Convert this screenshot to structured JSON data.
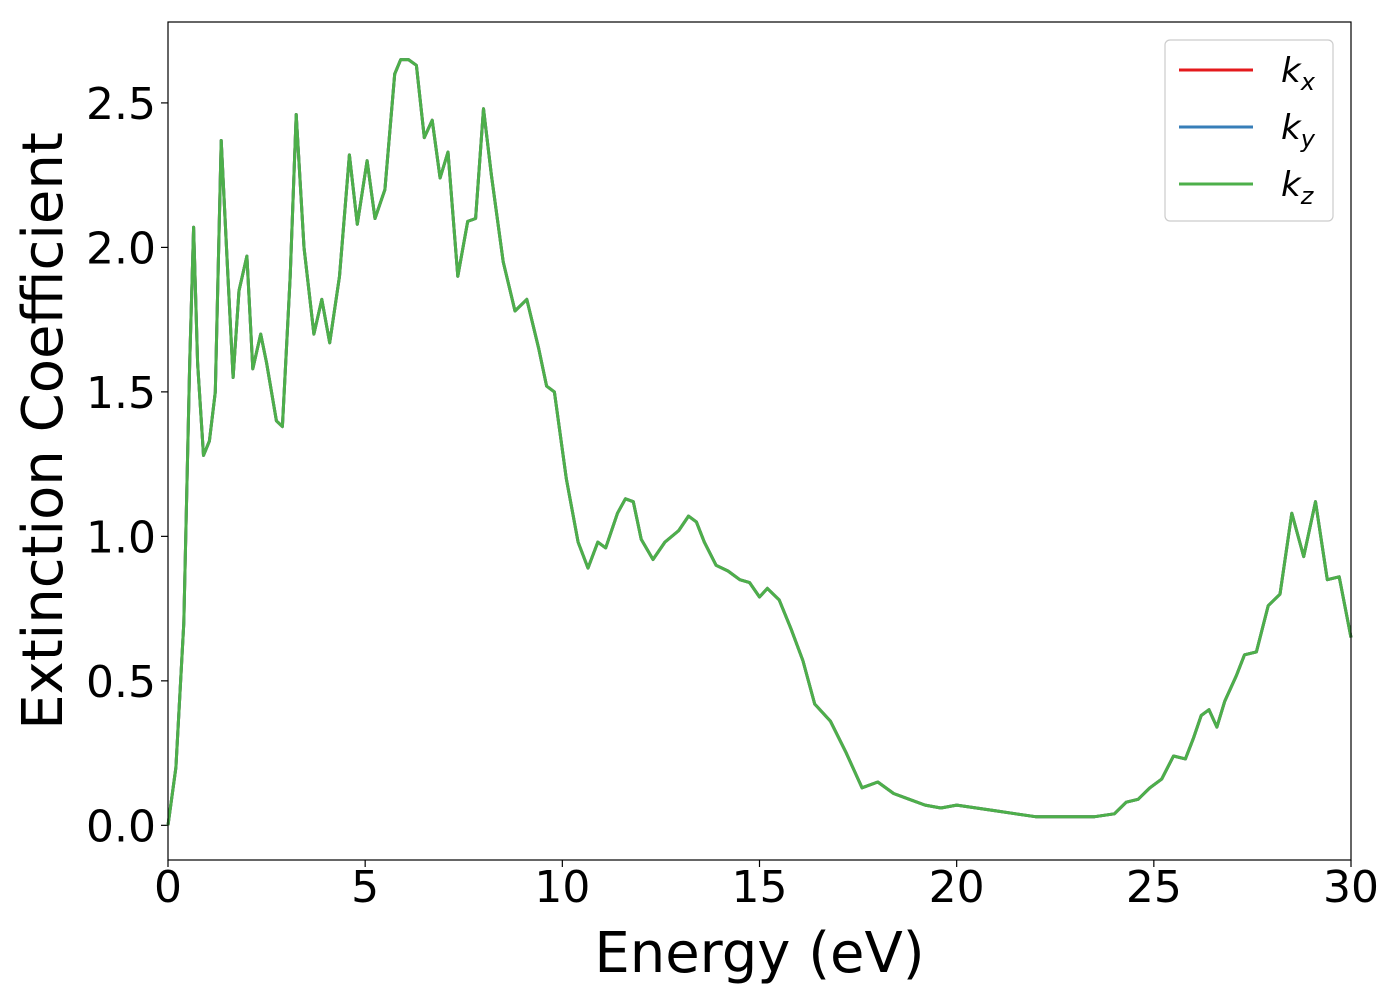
{
  "chart_data": {
    "type": "line",
    "title": "",
    "xlabel": "Energy (eV)",
    "ylabel": "Extinction Coefficient",
    "xlim": [
      0,
      30
    ],
    "ylim": [
      -0.12,
      2.78
    ],
    "xticks": [
      0,
      5,
      10,
      15,
      20,
      25,
      30
    ],
    "xtick_labels": [
      "0",
      "5",
      "10",
      "15",
      "20",
      "25",
      "30"
    ],
    "yticks": [
      0.0,
      0.5,
      1.0,
      1.5,
      2.0,
      2.5
    ],
    "ytick_labels": [
      "0.0",
      "0.5",
      "1.0",
      "1.5",
      "2.0",
      "2.5"
    ],
    "grid": false,
    "legend_position": "top-right",
    "x": [
      0.0,
      0.2,
      0.4,
      0.55,
      0.65,
      0.75,
      0.9,
      1.05,
      1.2,
      1.35,
      1.5,
      1.65,
      1.8,
      2.0,
      2.15,
      2.35,
      2.5,
      2.75,
      2.9,
      3.1,
      3.25,
      3.45,
      3.7,
      3.9,
      4.1,
      4.35,
      4.6,
      4.8,
      5.05,
      5.25,
      5.5,
      5.75,
      5.9,
      6.1,
      6.3,
      6.5,
      6.7,
      6.9,
      7.1,
      7.35,
      7.6,
      7.8,
      8.0,
      8.2,
      8.5,
      8.8,
      9.1,
      9.4,
      9.6,
      9.8,
      10.1,
      10.4,
      10.65,
      10.9,
      11.1,
      11.4,
      11.6,
      11.8,
      12.0,
      12.3,
      12.6,
      12.95,
      13.2,
      13.4,
      13.6,
      13.9,
      14.2,
      14.5,
      14.75,
      15.0,
      15.2,
      15.5,
      15.8,
      16.1,
      16.4,
      16.8,
      17.2,
      17.6,
      18.0,
      18.4,
      18.8,
      19.2,
      19.6,
      20.0,
      20.5,
      21.0,
      21.5,
      22.0,
      22.5,
      23.0,
      23.5,
      24.0,
      24.3,
      24.6,
      24.9,
      25.2,
      25.5,
      25.8,
      26.0,
      26.2,
      26.4,
      26.6,
      26.8,
      27.1,
      27.3,
      27.6,
      27.9,
      28.2,
      28.5,
      28.8,
      29.1,
      29.4,
      29.7,
      30.0
    ],
    "series": [
      {
        "name": "k_x",
        "color": "#e41a1c",
        "y": [
          0.0,
          0.2,
          0.7,
          1.6,
          2.07,
          1.6,
          1.28,
          1.33,
          1.5,
          2.37,
          1.95,
          1.55,
          1.85,
          1.97,
          1.58,
          1.7,
          1.6,
          1.4,
          1.38,
          1.9,
          2.46,
          2.0,
          1.7,
          1.82,
          1.67,
          1.9,
          2.32,
          2.08,
          2.3,
          2.1,
          2.2,
          2.6,
          2.65,
          2.65,
          2.63,
          2.38,
          2.44,
          2.24,
          2.33,
          1.9,
          2.09,
          2.1,
          2.48,
          2.25,
          1.95,
          1.78,
          1.82,
          1.65,
          1.52,
          1.5,
          1.2,
          0.98,
          0.89,
          0.98,
          0.96,
          1.08,
          1.13,
          1.12,
          0.99,
          0.92,
          0.98,
          1.02,
          1.07,
          1.05,
          0.98,
          0.9,
          0.88,
          0.85,
          0.84,
          0.79,
          0.82,
          0.78,
          0.68,
          0.57,
          0.42,
          0.36,
          0.25,
          0.13,
          0.15,
          0.11,
          0.09,
          0.07,
          0.06,
          0.07,
          0.06,
          0.05,
          0.04,
          0.03,
          0.03,
          0.03,
          0.03,
          0.04,
          0.08,
          0.09,
          0.13,
          0.16,
          0.24,
          0.23,
          0.3,
          0.38,
          0.4,
          0.34,
          0.43,
          0.52,
          0.59,
          0.6,
          0.76,
          0.8,
          1.08,
          0.93,
          1.12,
          0.85,
          0.86,
          0.65
        ]
      },
      {
        "name": "k_y",
        "color": "#377eb8",
        "y": [
          0.0,
          0.2,
          0.7,
          1.6,
          2.07,
          1.6,
          1.28,
          1.33,
          1.5,
          2.37,
          1.95,
          1.55,
          1.85,
          1.97,
          1.58,
          1.7,
          1.6,
          1.4,
          1.38,
          1.9,
          2.46,
          2.0,
          1.7,
          1.82,
          1.67,
          1.9,
          2.32,
          2.08,
          2.3,
          2.1,
          2.2,
          2.6,
          2.65,
          2.65,
          2.63,
          2.38,
          2.44,
          2.24,
          2.33,
          1.9,
          2.09,
          2.1,
          2.48,
          2.25,
          1.95,
          1.78,
          1.82,
          1.65,
          1.52,
          1.5,
          1.2,
          0.98,
          0.89,
          0.98,
          0.96,
          1.08,
          1.13,
          1.12,
          0.99,
          0.92,
          0.98,
          1.02,
          1.07,
          1.05,
          0.98,
          0.9,
          0.88,
          0.85,
          0.84,
          0.79,
          0.82,
          0.78,
          0.68,
          0.57,
          0.42,
          0.36,
          0.25,
          0.13,
          0.15,
          0.11,
          0.09,
          0.07,
          0.06,
          0.07,
          0.06,
          0.05,
          0.04,
          0.03,
          0.03,
          0.03,
          0.03,
          0.04,
          0.08,
          0.09,
          0.13,
          0.16,
          0.24,
          0.23,
          0.3,
          0.38,
          0.4,
          0.34,
          0.43,
          0.52,
          0.59,
          0.6,
          0.76,
          0.8,
          1.08,
          0.93,
          1.12,
          0.85,
          0.86,
          0.65
        ]
      },
      {
        "name": "k_z",
        "color": "#4daf4a",
        "y": [
          0.0,
          0.2,
          0.7,
          1.6,
          2.07,
          1.6,
          1.28,
          1.33,
          1.5,
          2.37,
          1.95,
          1.55,
          1.85,
          1.97,
          1.58,
          1.7,
          1.6,
          1.4,
          1.38,
          1.9,
          2.46,
          2.0,
          1.7,
          1.82,
          1.67,
          1.9,
          2.32,
          2.08,
          2.3,
          2.1,
          2.2,
          2.6,
          2.65,
          2.65,
          2.63,
          2.38,
          2.44,
          2.24,
          2.33,
          1.9,
          2.09,
          2.1,
          2.48,
          2.25,
          1.95,
          1.78,
          1.82,
          1.65,
          1.52,
          1.5,
          1.2,
          0.98,
          0.89,
          0.98,
          0.96,
          1.08,
          1.13,
          1.12,
          0.99,
          0.92,
          0.98,
          1.02,
          1.07,
          1.05,
          0.98,
          0.9,
          0.88,
          0.85,
          0.84,
          0.79,
          0.82,
          0.78,
          0.68,
          0.57,
          0.42,
          0.36,
          0.25,
          0.13,
          0.15,
          0.11,
          0.09,
          0.07,
          0.06,
          0.07,
          0.06,
          0.05,
          0.04,
          0.03,
          0.03,
          0.03,
          0.03,
          0.04,
          0.08,
          0.09,
          0.13,
          0.16,
          0.24,
          0.23,
          0.3,
          0.38,
          0.4,
          0.34,
          0.43,
          0.52,
          0.59,
          0.6,
          0.76,
          0.8,
          1.08,
          0.93,
          1.12,
          0.85,
          0.86,
          0.65
        ]
      }
    ],
    "legend": [
      {
        "base": "k",
        "sub": "x",
        "color": "#e41a1c"
      },
      {
        "base": "k",
        "sub": "y",
        "color": "#377eb8"
      },
      {
        "base": "k",
        "sub": "z",
        "color": "#4daf4a"
      }
    ]
  }
}
